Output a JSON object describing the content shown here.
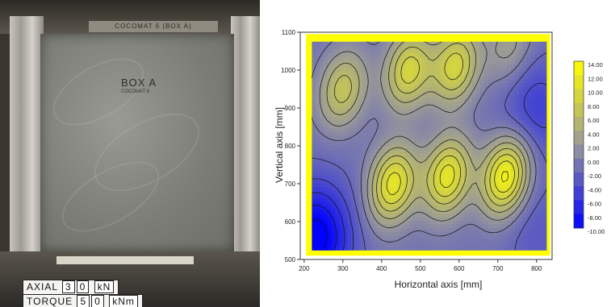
{
  "photo": {
    "top_plate_text": "COCOMAT 6   (BOX A)",
    "box_label": "BOX A",
    "box_sub": "COCOMAT 6",
    "axial": {
      "label": "AXIAL",
      "digit1": "3",
      "digit2": "0",
      "unit": "kN"
    },
    "torque": {
      "label": "TORQUE",
      "digit1": "5",
      "digit2": "0",
      "unit": "kNm"
    }
  },
  "chart_data": {
    "type": "contour",
    "xlabel": "Horizontal axis [mm]",
    "ylabel": "Vertical axis [mm]",
    "xlim": [
      190,
      840
    ],
    "ylim": [
      500,
      1100
    ],
    "xticks": [
      200,
      300,
      400,
      500,
      600,
      700,
      800
    ],
    "yticks": [
      500,
      600,
      700,
      800,
      900,
      1000,
      1100
    ],
    "data_region": {
      "x": [
        220,
        825
      ],
      "y": [
        525,
        1075
      ]
    },
    "border_color": "#ffff00",
    "colorbar": {
      "levels": [
        "14.00",
        "12.00",
        "10.00",
        "8.00",
        "6.00",
        "4.00",
        "2.00",
        "0.00",
        "-2.00",
        "-4.00",
        "-6.00",
        "-8.00",
        "-10.00"
      ],
      "min": -10,
      "max": 14,
      "colors": [
        "#0000ff",
        "#999999",
        "#ffff00"
      ]
    },
    "peaks": [
      {
        "x": 300,
        "y": 950,
        "value": 8
      },
      {
        "x": 430,
        "y": 700,
        "value": 12
      },
      {
        "x": 470,
        "y": 1000,
        "value": 10
      },
      {
        "x": 570,
        "y": 720,
        "value": 12
      },
      {
        "x": 590,
        "y": 1010,
        "value": 10
      },
      {
        "x": 720,
        "y": 720,
        "value": 14
      },
      {
        "x": 730,
        "y": 1060,
        "value": 4
      }
    ],
    "troughs": [
      {
        "x": 230,
        "y": 560,
        "value": -10
      },
      {
        "x": 800,
        "y": 900,
        "value": -4
      },
      {
        "x": 800,
        "y": 580,
        "value": -2
      }
    ],
    "grid": false,
    "legend": "right"
  }
}
